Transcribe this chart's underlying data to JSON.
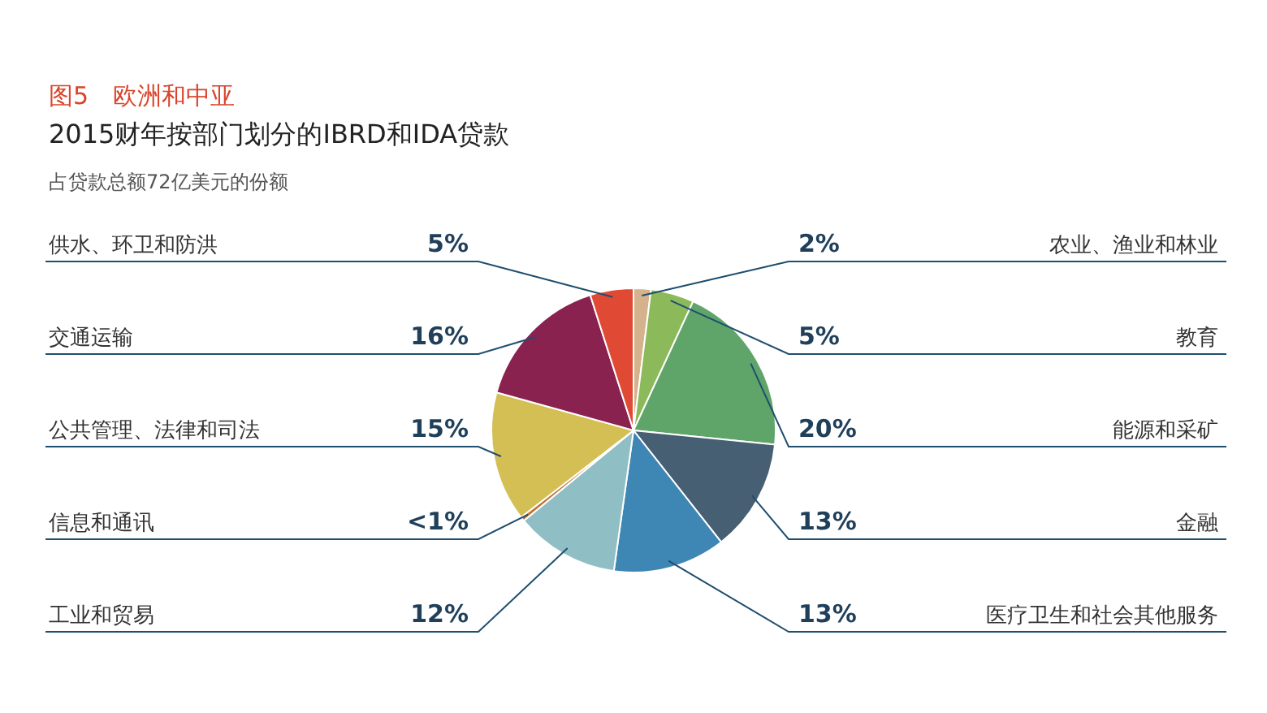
{
  "chart_data": {
    "type": "pie",
    "title": "图5　欧洲和中亚",
    "subtitle": "2015财年按部门划分的IBRD和IDA贷款",
    "annotations": [
      "占贷款总额72亿美元的份额"
    ],
    "categories": [
      "农业、渔业和林业",
      "教育",
      "能源和采矿",
      "金融",
      "医疗卫生和社会其他服务",
      "工业和贸易",
      "信息和通讯",
      "公共管理、法律和司法",
      "交通运输",
      "供水、环卫和防洪"
    ],
    "values": [
      2,
      5,
      20,
      13,
      13,
      12,
      0.5,
      15,
      16,
      5
    ],
    "value_labels": [
      "2%",
      "5%",
      "20%",
      "13%",
      "13%",
      "12%",
      "<1%",
      "15%",
      "16%",
      "5%"
    ],
    "colors": [
      "#d4b28c",
      "#8cba5a",
      "#5fa56a",
      "#475f72",
      "#3e86b4",
      "#8fbfc4",
      "#c0743a",
      "#d4bf55",
      "#8a2250",
      "#e04a35"
    ],
    "legend": false
  }
}
